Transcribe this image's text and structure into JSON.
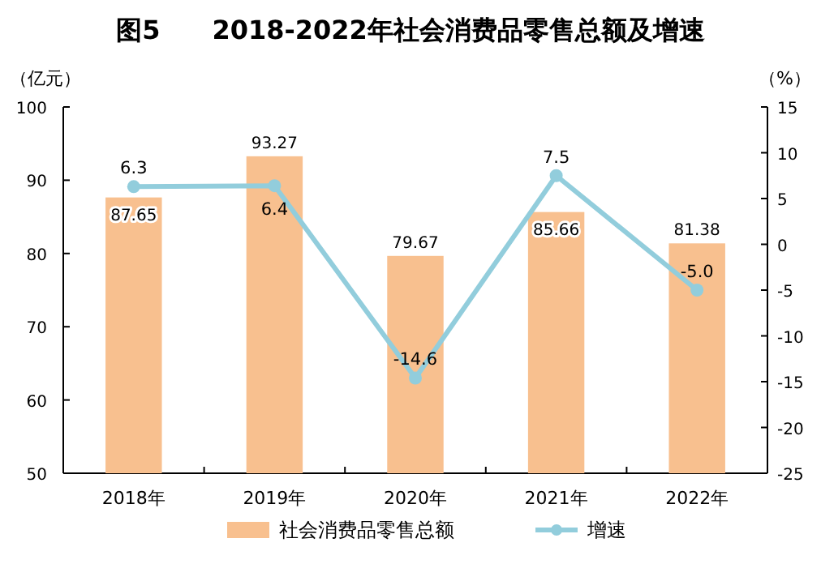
{
  "chart_data": {
    "type": "bar",
    "title": "图5　　2018-2022年社会消费品零售总额及增速",
    "categories": [
      "2018年",
      "2019年",
      "2020年",
      "2021年",
      "2022年"
    ],
    "ylabel": "（亿元）",
    "y2label": "（%）",
    "ylim": [
      50,
      100
    ],
    "yticks": [
      50,
      60,
      70,
      80,
      90,
      100
    ],
    "y2lim": [
      -25,
      15
    ],
    "y2ticks": [
      -25,
      -20,
      -15,
      -10,
      -5,
      0,
      5,
      10,
      15
    ],
    "legend": "bottom",
    "grid": false,
    "series": [
      {
        "name": "社会消费品零售总额",
        "type": "bar",
        "color": "#f8c08f",
        "values": [
          87.65,
          93.27,
          79.67,
          85.66,
          81.38
        ],
        "value_labels": [
          "87.65",
          "93.27",
          "79.67",
          "85.66",
          "81.38"
        ]
      },
      {
        "name": "增速",
        "type": "line",
        "axis": "y2",
        "color": "#92cddc",
        "marker": "circle",
        "values": [
          6.3,
          6.4,
          -14.6,
          7.5,
          -5.0
        ],
        "value_labels": [
          "6.3",
          "6.4",
          "-14.6",
          "7.5",
          "-5.0"
        ]
      }
    ]
  }
}
